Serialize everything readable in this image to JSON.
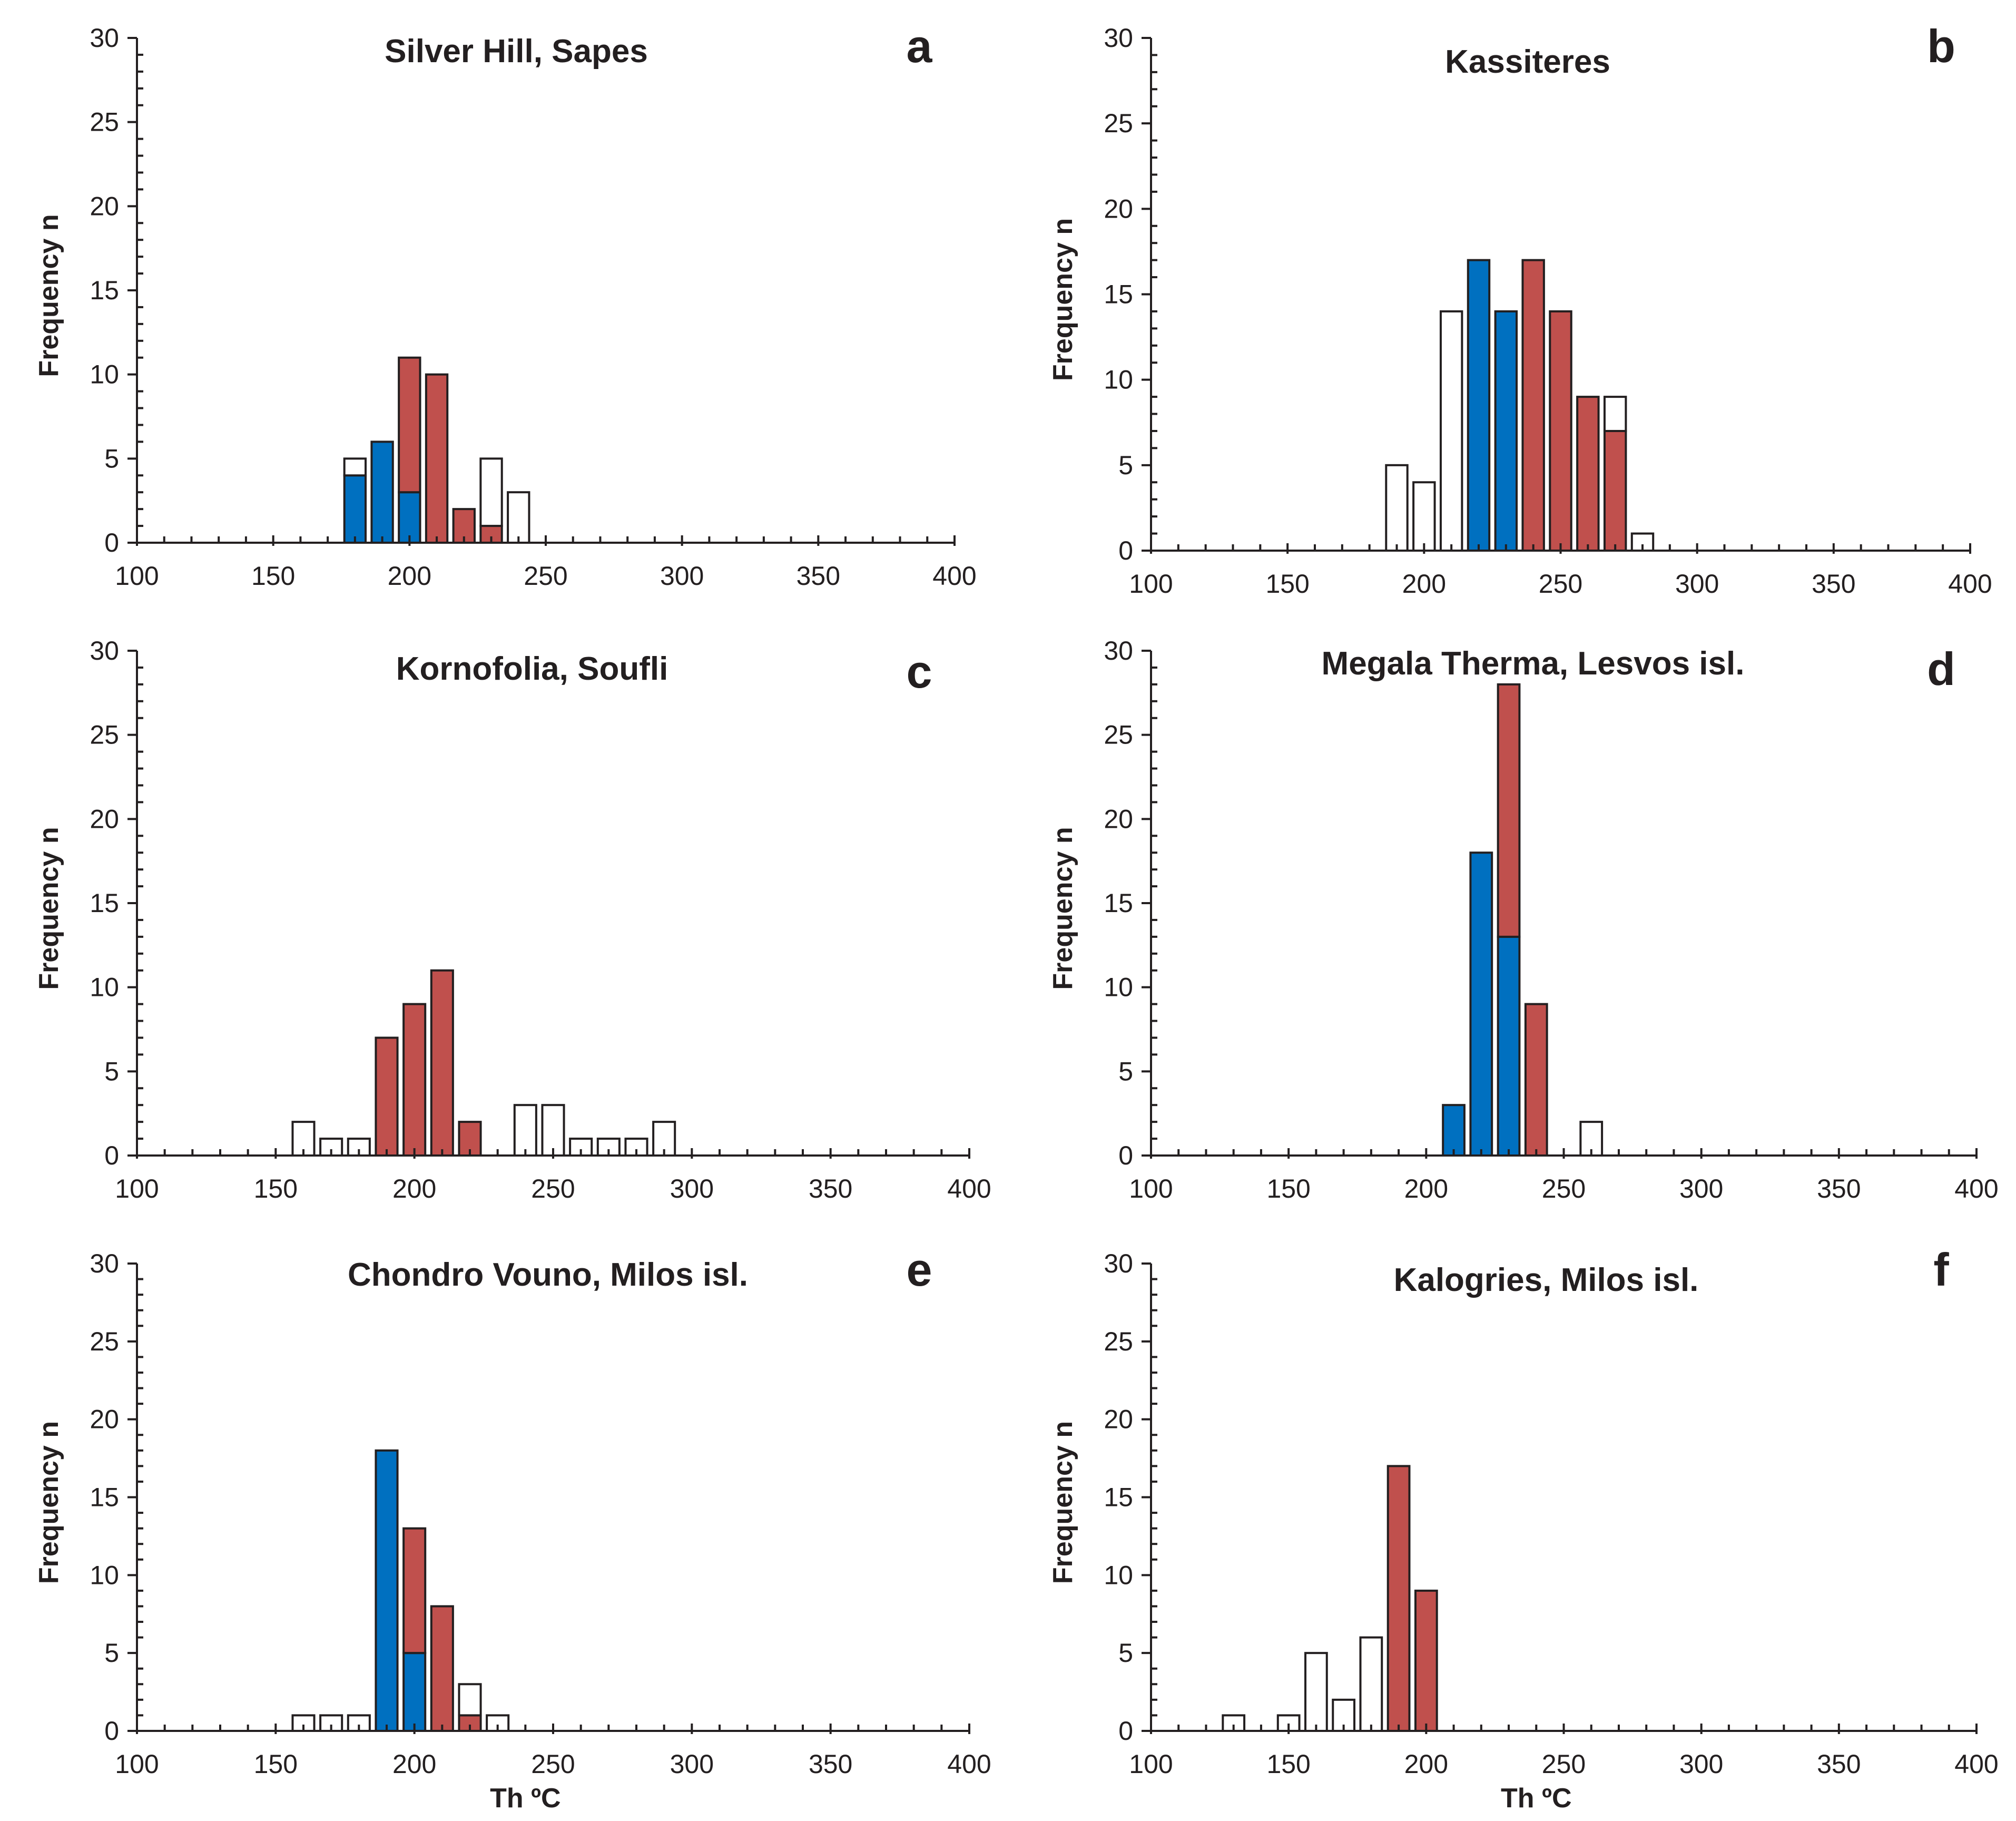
{
  "colors": {
    "red": "#c0504d",
    "blue": "#0070c0",
    "empty": "#ffffff",
    "ink": "#231f20"
  },
  "chart_data": [
    {
      "type": "bar",
      "stacked": true,
      "panel": "a",
      "title": "Silver Hill, Sapes",
      "letter": "a",
      "xlabel": "",
      "ylabel": "Frequency n",
      "xlim": [
        100,
        400
      ],
      "ylim": [
        0,
        30
      ],
      "xticks": [
        "100",
        "150",
        "200",
        "250",
        "300",
        "350",
        "400"
      ],
      "yticks": [
        "0",
        "5",
        "10",
        "15",
        "20",
        "25",
        "30"
      ],
      "bin_width": 10,
      "bars": [
        {
          "x": 180,
          "blue": 4,
          "red": 0,
          "white": 1
        },
        {
          "x": 190,
          "blue": 6,
          "red": 0,
          "white": 0
        },
        {
          "x": 200,
          "blue": 3,
          "red": 8,
          "white": 0
        },
        {
          "x": 210,
          "blue": 0,
          "red": 10,
          "white": 0
        },
        {
          "x": 220,
          "blue": 0,
          "red": 2,
          "white": 0
        },
        {
          "x": 230,
          "blue": 0,
          "red": 1,
          "white": 4
        },
        {
          "x": 240,
          "blue": 0,
          "red": 0,
          "white": 3
        }
      ]
    },
    {
      "type": "bar",
      "stacked": true,
      "panel": "b",
      "title": "Kassiteres",
      "letter": "b",
      "xlabel": "",
      "ylabel": "Frequency n",
      "xlim": [
        100,
        400
      ],
      "ylim": [
        0,
        30
      ],
      "xticks": [
        "100",
        "150",
        "200",
        "250",
        "300",
        "350",
        "400"
      ],
      "yticks": [
        "0",
        "5",
        "10",
        "15",
        "20",
        "25",
        "30"
      ],
      "bin_width": 10,
      "bars": [
        {
          "x": 190,
          "blue": 0,
          "red": 0,
          "white": 5
        },
        {
          "x": 200,
          "blue": 0,
          "red": 0,
          "white": 4
        },
        {
          "x": 210,
          "blue": 0,
          "red": 0,
          "white": 14
        },
        {
          "x": 220,
          "blue": 17,
          "red": 0,
          "white": 0
        },
        {
          "x": 230,
          "blue": 14,
          "red": 0,
          "white": 0
        },
        {
          "x": 240,
          "blue": 0,
          "red": 17,
          "white": 0
        },
        {
          "x": 250,
          "blue": 0,
          "red": 14,
          "white": 0
        },
        {
          "x": 260,
          "blue": 0,
          "red": 9,
          "white": 0
        },
        {
          "x": 270,
          "blue": 0,
          "red": 7,
          "white": 2
        },
        {
          "x": 280,
          "blue": 0,
          "red": 0,
          "white": 1
        }
      ]
    },
    {
      "type": "bar",
      "stacked": true,
      "panel": "c",
      "title": "Kornofolia, Soufli",
      "letter": "c",
      "xlabel": "",
      "ylabel": "Frequency n",
      "xlim": [
        100,
        400
      ],
      "ylim": [
        0,
        30
      ],
      "xticks": [
        "100",
        "150",
        "200",
        "250",
        "300",
        "350",
        "400"
      ],
      "yticks": [
        "0",
        "5",
        "10",
        "15",
        "20",
        "25",
        "30"
      ],
      "bin_width": 10,
      "bars": [
        {
          "x": 160,
          "blue": 0,
          "red": 0,
          "white": 2
        },
        {
          "x": 170,
          "blue": 0,
          "red": 0,
          "white": 1
        },
        {
          "x": 180,
          "blue": 0,
          "red": 0,
          "white": 1
        },
        {
          "x": 190,
          "blue": 0,
          "red": 7,
          "white": 0
        },
        {
          "x": 200,
          "blue": 0,
          "red": 9,
          "white": 0
        },
        {
          "x": 210,
          "blue": 0,
          "red": 11,
          "white": 0
        },
        {
          "x": 220,
          "blue": 0,
          "red": 2,
          "white": 0
        },
        {
          "x": 240,
          "blue": 0,
          "red": 0,
          "white": 3
        },
        {
          "x": 250,
          "blue": 0,
          "red": 0,
          "white": 3
        },
        {
          "x": 260,
          "blue": 0,
          "red": 0,
          "white": 1
        },
        {
          "x": 270,
          "blue": 0,
          "red": 0,
          "white": 1
        },
        {
          "x": 280,
          "blue": 0,
          "red": 0,
          "white": 1
        },
        {
          "x": 290,
          "blue": 0,
          "red": 0,
          "white": 2
        }
      ]
    },
    {
      "type": "bar",
      "stacked": true,
      "panel": "d",
      "title": "Megala Therma, Lesvos isl.",
      "letter": "d",
      "xlabel": "",
      "ylabel": "Frequency n",
      "xlim": [
        100,
        400
      ],
      "ylim": [
        0,
        30
      ],
      "xticks": [
        "100",
        "150",
        "200",
        "250",
        "300",
        "350",
        "400"
      ],
      "yticks": [
        "0",
        "5",
        "10",
        "15",
        "20",
        "25",
        "30"
      ],
      "bin_width": 10,
      "bars": [
        {
          "x": 210,
          "blue": 3,
          "red": 0,
          "white": 0
        },
        {
          "x": 220,
          "blue": 18,
          "red": 0,
          "white": 0
        },
        {
          "x": 230,
          "blue": 13,
          "red": 15,
          "white": 0
        },
        {
          "x": 240,
          "blue": 0,
          "red": 9,
          "white": 0
        },
        {
          "x": 260,
          "blue": 0,
          "red": 0,
          "white": 2
        }
      ]
    },
    {
      "type": "bar",
      "stacked": true,
      "panel": "e",
      "title": "Chondro Vouno, Milos isl.",
      "letter": "e",
      "xlabel": "Th ºC",
      "ylabel": "Frequency n",
      "xlim": [
        100,
        400
      ],
      "ylim": [
        0,
        30
      ],
      "xticks": [
        "100",
        "150",
        "200",
        "250",
        "300",
        "350",
        "400"
      ],
      "yticks": [
        "0",
        "5",
        "10",
        "15",
        "20",
        "25",
        "30"
      ],
      "bin_width": 10,
      "bars": [
        {
          "x": 160,
          "blue": 0,
          "red": 0,
          "white": 1
        },
        {
          "x": 170,
          "blue": 0,
          "red": 0,
          "white": 1
        },
        {
          "x": 180,
          "blue": 0,
          "red": 0,
          "white": 1
        },
        {
          "x": 190,
          "blue": 18,
          "red": 0,
          "white": 0
        },
        {
          "x": 200,
          "blue": 5,
          "red": 8,
          "white": 0
        },
        {
          "x": 210,
          "blue": 0,
          "red": 8,
          "white": 0
        },
        {
          "x": 220,
          "blue": 0,
          "red": 1,
          "white": 2
        },
        {
          "x": 230,
          "blue": 0,
          "red": 0,
          "white": 1
        }
      ]
    },
    {
      "type": "bar",
      "stacked": true,
      "panel": "f",
      "title": "Kalogries, Milos isl.",
      "letter": "f",
      "xlabel": "Th ºC",
      "ylabel": "Frequency n",
      "xlim": [
        100,
        400
      ],
      "ylim": [
        0,
        30
      ],
      "xticks": [
        "100",
        "150",
        "200",
        "250",
        "300",
        "350",
        "400"
      ],
      "yticks": [
        "0",
        "5",
        "10",
        "15",
        "20",
        "25",
        "30"
      ],
      "bin_width": 10,
      "bars": [
        {
          "x": 130,
          "blue": 0,
          "red": 0,
          "white": 1
        },
        {
          "x": 150,
          "blue": 0,
          "red": 0,
          "white": 1
        },
        {
          "x": 160,
          "blue": 0,
          "red": 0,
          "white": 5
        },
        {
          "x": 170,
          "blue": 0,
          "red": 0,
          "white": 2
        },
        {
          "x": 180,
          "blue": 0,
          "red": 0,
          "white": 6
        },
        {
          "x": 190,
          "blue": 0,
          "red": 17,
          "white": 0
        },
        {
          "x": 200,
          "blue": 0,
          "red": 9,
          "white": 0
        }
      ]
    }
  ]
}
